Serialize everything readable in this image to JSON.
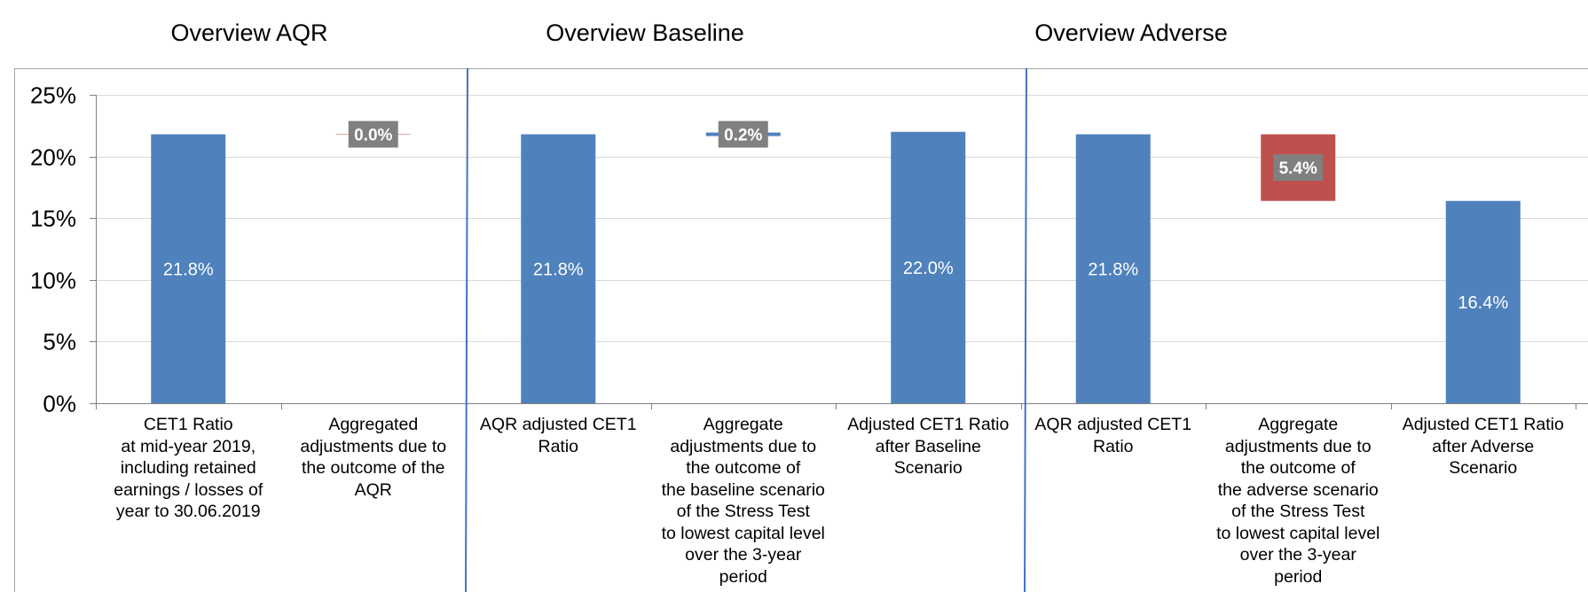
{
  "sections": [
    {
      "title": "Overview AQR"
    },
    {
      "title": "Overview Baseline"
    },
    {
      "title": "Overview Adverse"
    }
  ],
  "chart_data": {
    "type": "bar",
    "subtype": "waterfall",
    "ylim": [
      0,
      25
    ],
    "yticks": [
      "0%",
      "5%",
      "10%",
      "15%",
      "20%",
      "25%"
    ],
    "ytick_values": [
      0,
      5,
      10,
      15,
      20,
      25
    ],
    "grid": true,
    "categories": [
      "CET1 Ratio\nat mid-year 2019,\nincluding retained\nearnings / losses of\nyear to 30.06.2019",
      "Aggregated\nadjustments due to\nthe outcome of the\nAQR",
      "AQR adjusted CET1\nRatio",
      "Aggregate\nadjustments due to\nthe outcome of\nthe baseline scenario\nof the Stress Test\nto lowest capital level\nover the 3-year\nperiod",
      "Adjusted CET1 Ratio\nafter Baseline\nScenario",
      "AQR adjusted CET1\nRatio",
      "Aggregate\nadjustments due to\nthe outcome of\nthe adverse scenario\nof the Stress Test\nto lowest capital level\nover the 3-year\nperiod",
      "Adjusted CET1 Ratio\nafter Adverse\nScenario"
    ],
    "bars": [
      {
        "kind": "total",
        "base": 0,
        "value": 21.8,
        "label": "21.8%"
      },
      {
        "kind": "delta",
        "base": 21.8,
        "value": 0.0,
        "label": "0.0%"
      },
      {
        "kind": "total",
        "base": 0,
        "value": 21.8,
        "label": "21.8%"
      },
      {
        "kind": "delta",
        "base": 21.8,
        "value": 0.2,
        "label": "0.2%"
      },
      {
        "kind": "total",
        "base": 0,
        "value": 22.0,
        "label": "22.0%"
      },
      {
        "kind": "total",
        "base": 0,
        "value": 21.8,
        "label": "21.8%"
      },
      {
        "kind": "delta",
        "base": 16.4,
        "value": 5.4,
        "label": "5.4%"
      },
      {
        "kind": "total",
        "base": 0,
        "value": 16.4,
        "label": "16.4%"
      }
    ],
    "colors": {
      "total": "#4F81BD",
      "increase": "#4F81BD",
      "decrease": "#C0504D",
      "neutral": "#E6A3A1",
      "delta_label_bg": "#808080",
      "grid": "#D9D9D9",
      "divider": "#4472C4"
    }
  }
}
